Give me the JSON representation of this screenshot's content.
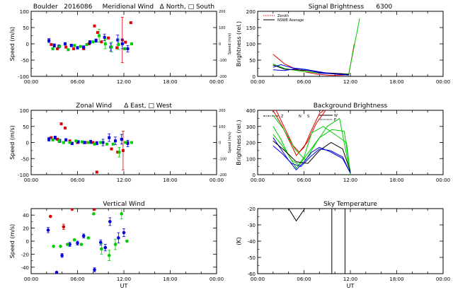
{
  "chart_data": [
    {
      "id": "meridional",
      "type": "scatter",
      "title": "Boulder   2016086     Meridional Wind   Δ North, □ South",
      "ylabel": "Speed (m/s)",
      "ylabel_right": "Speed (m/s)",
      "ylim": [
        -100,
        100
      ],
      "ylim_right": [
        -200,
        200
      ],
      "yticks": [
        -100,
        -50,
        0,
        50,
        100
      ],
      "yticks_right": [
        -200,
        -100,
        0,
        100,
        200
      ],
      "xlim": [
        0,
        24
      ],
      "xticks": [
        "00:00",
        "06:00",
        "12:00",
        "18:00",
        "00:00"
      ],
      "series": [
        {
          "color": "#dd0000",
          "x": [
            2.6,
            3.4,
            4.5,
            5.5,
            6.8,
            7.5,
            8.2,
            8.6,
            9.1,
            10.0,
            11.1,
            11.8,
            12.2,
            12.9
          ],
          "y": [
            -2,
            -15,
            -10,
            -15,
            -15,
            0,
            55,
            35,
            6,
            18,
            -12,
            12,
            5,
            65
          ],
          "err": [
            0,
            0,
            0,
            0,
            0,
            0,
            0,
            0,
            0,
            0,
            0,
            70,
            0,
            0
          ]
        },
        {
          "color": "#0000dd",
          "x": [
            2.3,
            3.0,
            3.6,
            4.4,
            5.2,
            6.0,
            6.8,
            7.6,
            8.4,
            9.5,
            10.3,
            11.2,
            11.8,
            12.5
          ],
          "y": [
            10,
            -5,
            -8,
            0,
            -5,
            -12,
            -10,
            5,
            10,
            20,
            -10,
            12,
            0,
            -15
          ],
          "err": [
            6,
            5,
            5,
            4,
            4,
            4,
            4,
            5,
            5,
            10,
            12,
            15,
            15,
            10
          ]
        },
        {
          "color": "#00cc00",
          "x": [
            2.8,
            3.7,
            4.8,
            5.6,
            6.4,
            7.2,
            8.0,
            8.8,
            9.6,
            10.4,
            11.3,
            12.1,
            13.0
          ],
          "y": [
            -15,
            -8,
            -18,
            -5,
            -8,
            -2,
            6,
            25,
            0,
            -10,
            -2,
            -15,
            0
          ],
          "err": [
            0,
            0,
            0,
            0,
            0,
            0,
            0,
            20,
            15,
            15,
            15,
            0,
            0
          ]
        }
      ]
    },
    {
      "id": "zonal",
      "type": "scatter",
      "title": "Zonal Wind      Δ East, □ West",
      "ylabel": "Speed (m/s)",
      "ylabel_right": "Speed (m/s)",
      "ylim": [
        -100,
        100
      ],
      "ylim_right": [
        -200,
        200
      ],
      "yticks": [
        -100,
        -50,
        0,
        50,
        100
      ],
      "yticks_right": [
        -200,
        -100,
        0,
        100,
        200
      ],
      "xlim": [
        0,
        24
      ],
      "xticks": [
        "00:00",
        "06:00",
        "12:00",
        "18:00",
        "00:00"
      ],
      "series": [
        {
          "color": "#dd0000",
          "x": [
            2.6,
            3.4,
            3.9,
            4.4,
            5.0,
            6.0,
            7.0,
            8.0,
            8.5,
            10.4,
            11.2,
            11.9,
            12.5
          ],
          "y": [
            15,
            10,
            58,
            45,
            5,
            0,
            0,
            0,
            -92,
            -20,
            -30,
            -25,
            0
          ],
          "err": [
            0,
            0,
            0,
            0,
            0,
            0,
            0,
            0,
            0,
            0,
            0,
            60,
            0
          ]
        },
        {
          "color": "#0000dd",
          "x": [
            2.3,
            3.1,
            3.7,
            4.5,
            5.3,
            6.1,
            6.9,
            7.7,
            8.5,
            9.3,
            10.1,
            10.9,
            11.7,
            12.5
          ],
          "y": [
            10,
            15,
            5,
            8,
            -3,
            2,
            0,
            2,
            -2,
            0,
            15,
            5,
            10,
            -3
          ],
          "err": [
            6,
            5,
            5,
            4,
            4,
            4,
            4,
            5,
            5,
            10,
            12,
            12,
            15,
            10
          ]
        },
        {
          "color": "#00cc00",
          "x": [
            2.8,
            3.6,
            4.2,
            5.0,
            5.8,
            6.6,
            7.4,
            8.2,
            9.0,
            9.8,
            10.6,
            11.4,
            12.2,
            13.0
          ],
          "y": [
            8,
            5,
            0,
            0,
            5,
            2,
            0,
            -5,
            0,
            -5,
            -5,
            -30,
            0,
            0
          ],
          "err": [
            0,
            0,
            0,
            0,
            0,
            0,
            0,
            0,
            0,
            0,
            0,
            15,
            0,
            0
          ]
        }
      ]
    },
    {
      "id": "vertical",
      "type": "scatter",
      "title": "Vertical Wind",
      "ylabel": "Speed (m/s)",
      "ylim": [
        -50,
        50
      ],
      "yticks": [
        -40,
        -20,
        0,
        20,
        40
      ],
      "xlim": [
        0,
        24
      ],
      "xticks": [
        "00:00",
        "06:00",
        "12:00",
        "18:00",
        "00:00"
      ],
      "xlabel": "UT",
      "series": [
        {
          "color": "#dd0000",
          "x": [
            2.5,
            4.2,
            5.3,
            8.2
          ],
          "y": [
            38,
            22,
            50,
            50
          ],
          "err": [
            0,
            4,
            3,
            3
          ]
        },
        {
          "color": "#0000dd",
          "x": [
            2.2,
            3.3,
            4.0,
            5.0,
            6.0,
            6.8,
            8.2,
            9.0,
            9.6,
            10.2,
            11.3,
            12.0
          ],
          "y": [
            17,
            -48,
            -22,
            -5,
            -3,
            8,
            -44,
            -2,
            -10,
            30,
            5,
            13
          ],
          "err": [
            4,
            0,
            3,
            3,
            3,
            3,
            3,
            4,
            5,
            6,
            8,
            6
          ]
        },
        {
          "color": "#00cc00",
          "x": [
            2.9,
            3.8,
            4.7,
            5.6,
            6.5,
            7.4,
            8.1,
            9.1,
            10.1,
            10.9,
            11.7,
            12.4
          ],
          "y": [
            -8,
            -8,
            -5,
            2,
            -5,
            5,
            42,
            -12,
            -22,
            -5,
            42,
            0
          ],
          "err": [
            0,
            0,
            0,
            0,
            0,
            0,
            0,
            8,
            8,
            8,
            8,
            0
          ]
        }
      ]
    },
    {
      "id": "signal",
      "type": "line",
      "title": "Signal Brightness      6300",
      "ylabel": "Brightness (rel.)",
      "ylim": [
        0,
        200
      ],
      "yticks": [
        0,
        50,
        100,
        150,
        200
      ],
      "xlim": [
        0,
        24
      ],
      "xticks": [
        "00:00",
        "06:00",
        "12:00",
        "18:00",
        "00:00"
      ],
      "legend": [
        "Zenith",
        "NSWE Average"
      ],
      "series": [
        {
          "color": "#dd0000",
          "x": [
            2.0,
            3.5,
            5.0,
            6.5,
            8.0,
            9.5,
            11.0,
            11.8,
            12.5
          ],
          "y": [
            68,
            38,
            22,
            12,
            6,
            3,
            4,
            6,
            100
          ]
        },
        {
          "color": "#00cc00",
          "x": [
            2.0,
            3.5,
            5.0,
            6.5,
            8.0,
            9.5,
            11.0,
            11.8,
            13.2
          ],
          "y": [
            38,
            24,
            18,
            14,
            10,
            8,
            6,
            8,
            178
          ]
        },
        {
          "color": "#000000",
          "x": [
            2.0,
            3.5,
            5.0,
            6.5,
            8.0,
            9.5,
            11.0,
            11.8
          ],
          "y": [
            35,
            22,
            20,
            18,
            12,
            10,
            8,
            6
          ]
        },
        {
          "color": "#0000dd",
          "x": [
            2.0,
            3.0,
            4.5,
            6.0,
            7.5,
            9.0,
            10.5,
            11.8
          ],
          "y": [
            28,
            36,
            26,
            22,
            16,
            10,
            6,
            4
          ]
        },
        {
          "color": "#0000dd",
          "x": [
            2.0,
            3.5,
            5.0,
            6.5,
            8.0,
            9.5,
            11.0,
            11.8
          ],
          "y": [
            20,
            18,
            24,
            20,
            10,
            8,
            6,
            4
          ]
        }
      ]
    },
    {
      "id": "background",
      "type": "line",
      "title": "Background Brightness",
      "ylabel": "Brightness (rel.)",
      "ylim": [
        0,
        400
      ],
      "yticks": [
        0,
        100,
        200,
        300,
        400
      ],
      "xlim": [
        0,
        24
      ],
      "xticks": [
        "00:00",
        "06:00",
        "12:00",
        "18:00",
        "00:00"
      ],
      "legend": [
        "Z",
        "N",
        "S",
        "W",
        "E"
      ],
      "series": [
        {
          "color": "#dd0000",
          "x": [
            2.0,
            3.2,
            4.2,
            5.0,
            6.0,
            7.0,
            8.0,
            8.6
          ],
          "y": [
            400,
            300,
            200,
            120,
            170,
            280,
            380,
            400
          ]
        },
        {
          "color": "#dd0000",
          "x": [
            2.4,
            3.6,
            4.6,
            5.4,
            6.4,
            7.6,
            8.8
          ],
          "y": [
            400,
            280,
            180,
            140,
            200,
            320,
            400
          ]
        },
        {
          "color": "#00cc00",
          "x": [
            2.0,
            3.0,
            4.0,
            5.0,
            6.0,
            7.0,
            8.5,
            10.0,
            11.5,
            12.0
          ],
          "y": [
            300,
            220,
            120,
            40,
            110,
            260,
            300,
            250,
            200,
            10
          ]
        },
        {
          "color": "#00cc00",
          "x": [
            2.0,
            3.2,
            4.4,
            5.4,
            6.6,
            8.0,
            9.6,
            11.2,
            12.0
          ],
          "y": [
            250,
            180,
            90,
            60,
            140,
            230,
            280,
            270,
            10
          ]
        },
        {
          "color": "#00cc00",
          "x": [
            2.0,
            3.4,
            4.8,
            6.2,
            7.6,
            9.0,
            10.6,
            12.0
          ],
          "y": [
            370,
            280,
            160,
            90,
            200,
            300,
            350,
            0
          ]
        },
        {
          "color": "#0000dd",
          "x": [
            2.0,
            3.0,
            4.0,
            5.0,
            6.0,
            7.0,
            8.0,
            9.5,
            11.0,
            12.0
          ],
          "y": [
            230,
            160,
            90,
            30,
            80,
            140,
            170,
            140,
            100,
            10
          ]
        },
        {
          "color": "#0000dd",
          "x": [
            2.0,
            3.2,
            4.4,
            5.6,
            6.8,
            8.0,
            9.4,
            11.0,
            12.0
          ],
          "y": [
            180,
            130,
            70,
            50,
            110,
            160,
            150,
            110,
            10
          ]
        },
        {
          "color": "#000000",
          "x": [
            2.0,
            3.5,
            5.0,
            6.5,
            8.0,
            9.5,
            11.0,
            12.0
          ],
          "y": [
            210,
            150,
            80,
            70,
            150,
            200,
            160,
            20
          ]
        }
      ]
    },
    {
      "id": "sky",
      "type": "line",
      "title": "Sky Temperature",
      "ylabel": "(K)",
      "ylim": [
        -60,
        -20
      ],
      "yticks": [
        -60,
        -50,
        -40,
        -30,
        -20
      ],
      "xlim": [
        0,
        24
      ],
      "xticks": [
        "00:00",
        "06:00",
        "12:00",
        "18:00",
        "00:00"
      ],
      "xlabel": "UT",
      "series": [
        {
          "color": "#000000",
          "x": [
            4.0,
            5.0,
            6.1
          ],
          "y": [
            -20,
            -27.5,
            -20
          ]
        },
        {
          "color": "#000000",
          "x": [
            9.6,
            9.6
          ],
          "y": [
            -20,
            -60
          ]
        },
        {
          "color": "#000000",
          "x": [
            11.3,
            11.3
          ],
          "y": [
            -20,
            -60
          ]
        }
      ]
    }
  ]
}
